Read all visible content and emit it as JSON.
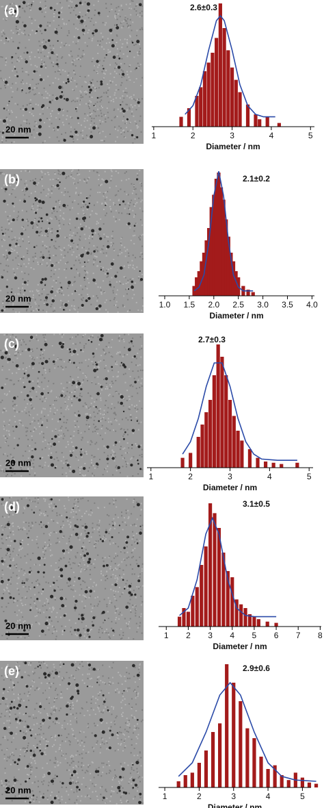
{
  "chart_data": [
    {
      "type": "bar",
      "panel_label": "(a)",
      "scale_bar": "20 nm",
      "annotation": "2.6±0.3",
      "x_label": "Diameter / nm",
      "xlim": [
        0.95,
        5.1
      ],
      "xticks": [
        1,
        2,
        3,
        4,
        5
      ],
      "ylim": [
        0,
        100
      ],
      "color": "#a31b1b",
      "x": [
        1.7,
        1.9,
        2.1,
        2.2,
        2.3,
        2.4,
        2.5,
        2.6,
        2.7,
        2.8,
        2.9,
        3.0,
        3.1,
        3.2,
        3.4,
        3.6,
        3.7,
        3.9,
        4.2
      ],
      "values": [
        8,
        15,
        25,
        32,
        45,
        52,
        60,
        72,
        100,
        80,
        62,
        48,
        38,
        28,
        18,
        10,
        6,
        8,
        3
      ],
      "fit": {
        "color": "#2a4aa8",
        "x": [
          1.8,
          2.0,
          2.2,
          2.4,
          2.6,
          2.7,
          2.8,
          3.0,
          3.2,
          3.4,
          3.6,
          3.8,
          4.1
        ],
        "values": [
          10,
          17,
          34,
          62,
          86,
          90,
          86,
          62,
          34,
          17,
          10,
          8,
          8
        ]
      }
    },
    {
      "type": "bar",
      "panel_label": "(b)",
      "scale_bar": "20 nm",
      "annotation": "2.1±0.2",
      "x_label": "Diameter / nm",
      "xlim": [
        0.875,
        4.05
      ],
      "xticks": [
        {
          "value": 1,
          "label": "1.0"
        },
        {
          "value": 1.5,
          "label": "1.5"
        },
        {
          "value": 2,
          "label": "2.0"
        },
        {
          "value": 2.5,
          "label": "2.5"
        },
        {
          "value": 3,
          "label": "3.0"
        },
        {
          "value": 3.5,
          "label": "3.5"
        },
        {
          "value": 4,
          "label": "4.0"
        }
      ],
      "ylim": [
        0,
        100
      ],
      "color": "#a31b1b",
      "x": [
        1.6,
        1.65,
        1.7,
        1.75,
        1.8,
        1.85,
        1.9,
        1.95,
        2.0,
        2.05,
        2.1,
        2.15,
        2.2,
        2.25,
        2.3,
        2.35,
        2.4,
        2.45,
        2.5,
        2.6,
        2.7,
        2.8
      ],
      "values": [
        8,
        15,
        20,
        28,
        35,
        45,
        55,
        72,
        82,
        95,
        100,
        88,
        78,
        62,
        48,
        35,
        28,
        20,
        15,
        8,
        5,
        3
      ],
      "fit": {
        "color": "#2a4aa8",
        "x": [
          1.6,
          1.7,
          1.8,
          1.9,
          2.0,
          2.1,
          2.2,
          2.3,
          2.4,
          2.5,
          2.6,
          2.7,
          2.8
        ],
        "values": [
          4,
          7,
          17,
          44,
          81,
          101,
          81,
          44,
          17,
          7,
          4,
          4,
          4
        ]
      }
    },
    {
      "type": "bar",
      "panel_label": "(c)",
      "scale_bar": "20 nm",
      "annotation": "2.7±0.3",
      "x_label": "Diameter / nm",
      "xlim": [
        0.9,
        5.1
      ],
      "xticks": [
        1,
        2,
        3,
        4,
        5
      ],
      "ylim": [
        0,
        100
      ],
      "color": "#a31b1b",
      "x": [
        1.8,
        2.0,
        2.2,
        2.3,
        2.4,
        2.5,
        2.6,
        2.7,
        2.8,
        2.9,
        3.0,
        3.1,
        3.2,
        3.3,
        3.5,
        3.7,
        3.9,
        4.1,
        4.3,
        4.7
      ],
      "values": [
        8,
        12,
        25,
        35,
        45,
        55,
        75,
        100,
        90,
        75,
        55,
        42,
        30,
        22,
        15,
        8,
        5,
        4,
        3,
        4
      ],
      "fit": {
        "color": "#2a4aa8",
        "x": [
          1.8,
          2.0,
          2.2,
          2.4,
          2.6,
          2.8,
          3.0,
          3.2,
          3.4,
          3.6,
          3.8,
          4.2,
          4.7
        ],
        "values": [
          11,
          21,
          40,
          66,
          85,
          85,
          66,
          40,
          21,
          11,
          7,
          6,
          6
        ]
      }
    },
    {
      "type": "bar",
      "panel_label": "(d)",
      "scale_bar": "20 nm",
      "annotation": "3.1±0.5",
      "x_label": "Diameter / nm",
      "xlim": [
        0.65,
        8.05
      ],
      "xticks": [
        1,
        2,
        3,
        4,
        5,
        6,
        7,
        8
      ],
      "ylim": [
        0,
        100
      ],
      "color": "#a31b1b",
      "x": [
        1.6,
        1.8,
        2.0,
        2.2,
        2.4,
        2.6,
        2.8,
        3.0,
        3.2,
        3.4,
        3.6,
        3.8,
        4.0,
        4.2,
        4.4,
        4.6,
        4.8,
        5.0,
        5.2,
        5.6,
        6.0
      ],
      "values": [
        8,
        15,
        12,
        25,
        32,
        50,
        65,
        100,
        92,
        80,
        60,
        45,
        40,
        22,
        18,
        15,
        10,
        8,
        6,
        4,
        3
      ],
      "fit": {
        "color": "#2a4aa8",
        "x": [
          1.6,
          2.0,
          2.4,
          2.8,
          3.1,
          3.4,
          3.8,
          4.2,
          4.6,
          5.0,
          5.5,
          6.0
        ],
        "values": [
          9,
          15,
          38,
          75,
          88,
          75,
          38,
          15,
          9,
          8,
          8,
          8
        ]
      }
    },
    {
      "type": "bar",
      "panel_label": "(e)",
      "scale_bar": "20 nm",
      "annotation": "2.9±0.6",
      "x_label": "Diameter / nm",
      "xlim": [
        0.82,
        5.25
      ],
      "xticks": [
        1,
        2,
        3,
        4,
        5
      ],
      "ylim": [
        0,
        100
      ],
      "color": "#a31b1b",
      "x": [
        1.4,
        1.6,
        1.8,
        2.0,
        2.2,
        2.4,
        2.6,
        2.8,
        3.0,
        3.2,
        3.4,
        3.6,
        3.8,
        4.0,
        4.2,
        4.4,
        4.6,
        4.8,
        5.0,
        5.2,
        5.4
      ],
      "values": [
        5,
        10,
        12,
        20,
        30,
        45,
        52,
        100,
        85,
        70,
        48,
        40,
        25,
        15,
        18,
        10,
        6,
        12,
        8,
        4,
        3
      ],
      "fit": {
        "color": "#2a4aa8",
        "x": [
          1.4,
          1.8,
          2.2,
          2.6,
          2.9,
          3.2,
          3.6,
          4.0,
          4.4,
          4.8,
          5.4
        ],
        "values": [
          9,
          20,
          45,
          75,
          85,
          75,
          45,
          20,
          9,
          6,
          5
        ]
      }
    }
  ]
}
